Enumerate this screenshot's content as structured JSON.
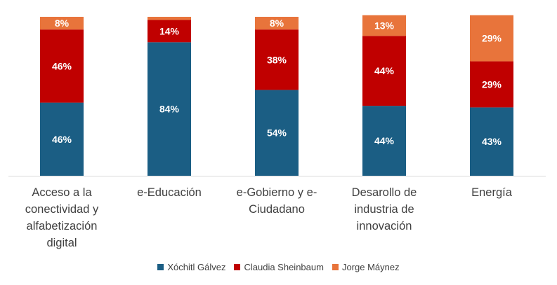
{
  "chart_data": {
    "type": "bar",
    "stacked": true,
    "categories": [
      "Acceso a la conectividad y alfabetización digital",
      "e-Educación",
      "e-Gobierno y e-Ciudadano",
      "Desarollo de industria de innovación",
      "Energía"
    ],
    "category_lines": [
      [
        "Acceso a la",
        "conectividad y",
        "alfabetización",
        "digital"
      ],
      [
        "e-Educación"
      ],
      [
        "e-Gobierno y e-",
        "Ciudadano"
      ],
      [
        "Desarollo de",
        "industria de",
        "innovación"
      ],
      [
        "Energía"
      ]
    ],
    "series": [
      {
        "name": "Xóchitl Gálvez",
        "color": "#1B5E84",
        "values": [
          46,
          84,
          54,
          44,
          43
        ],
        "labels": [
          "46%",
          "84%",
          "54%",
          "44%",
          "43%"
        ]
      },
      {
        "name": "Claudia Sheinbaum",
        "color": "#C00000",
        "values": [
          46,
          14,
          38,
          44,
          29
        ],
        "labels": [
          "46%",
          "14%",
          "38%",
          "44%",
          "29%"
        ]
      },
      {
        "name": "Jorge Máynez",
        "color": "#E8743B",
        "values": [
          8,
          2,
          8,
          13,
          29
        ],
        "labels": [
          "8%",
          "",
          "8%",
          "13%",
          "29%"
        ]
      }
    ],
    "ylim": [
      0,
      100
    ],
    "grid": false,
    "legend_position": "bottom"
  }
}
